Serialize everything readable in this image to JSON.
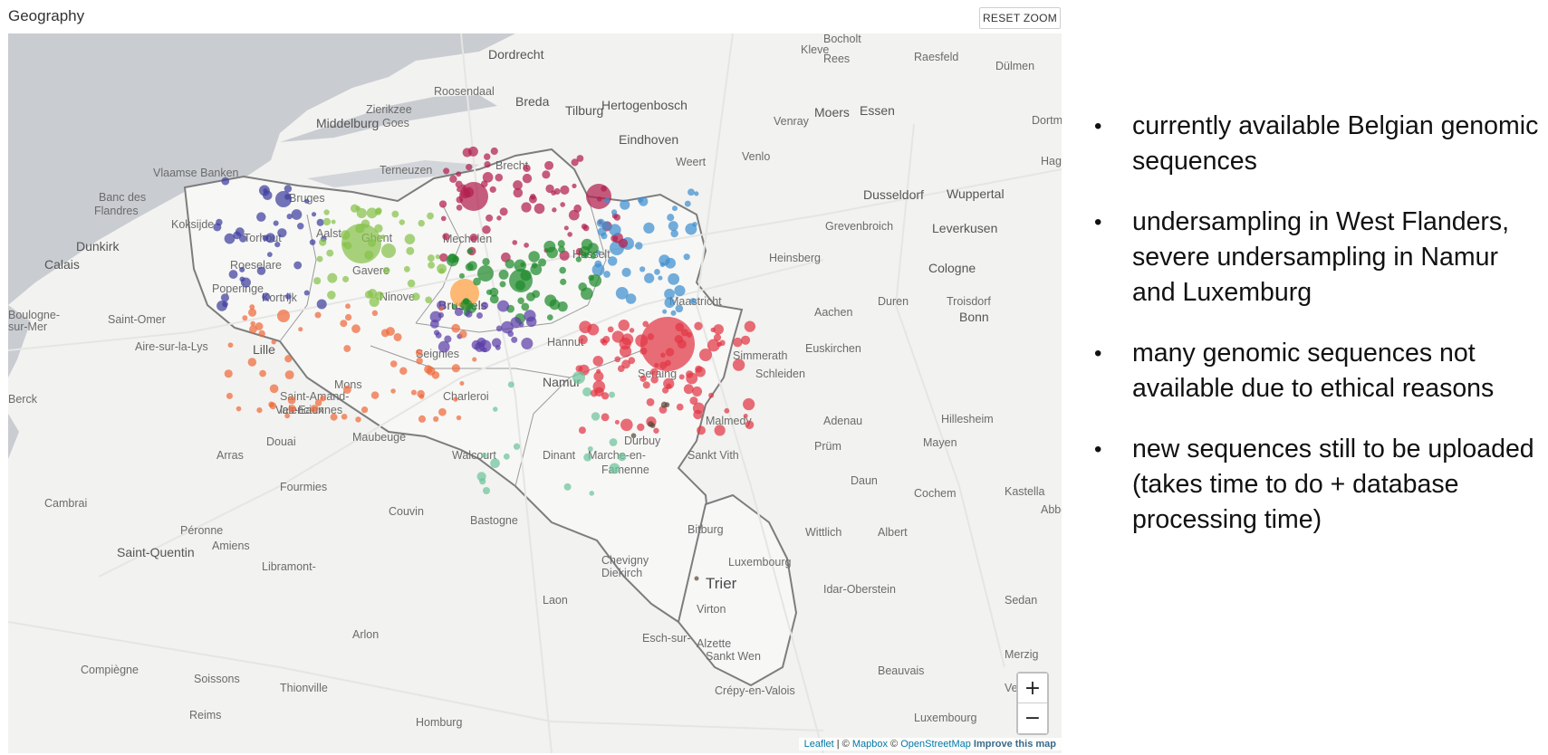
{
  "panel": {
    "title": "Geography",
    "reset_zoom_label": "RESET ZOOM"
  },
  "map": {
    "place_labels": [
      {
        "text": "Dordrecht"
      },
      {
        "text": "Hertogenbosch"
      },
      {
        "text": "Breda"
      },
      {
        "text": "Tilburg"
      },
      {
        "text": "Roosendaal"
      },
      {
        "text": "Middelburg"
      },
      {
        "text": "Goes"
      },
      {
        "text": "Zierikzee"
      },
      {
        "text": "Eindhoven"
      },
      {
        "text": "Venlo"
      },
      {
        "text": "Weert"
      },
      {
        "text": "Moers"
      },
      {
        "text": "Essen"
      },
      {
        "text": "Dortm"
      },
      {
        "text": "Hag"
      },
      {
        "text": "Dusseldorf"
      },
      {
        "text": "Wuppertal"
      },
      {
        "text": "Grevenbroich"
      },
      {
        "text": "Leverkusen"
      },
      {
        "text": "Cologne"
      },
      {
        "text": "Bonn"
      },
      {
        "text": "Troisdorf"
      },
      {
        "text": "Duren"
      },
      {
        "text": "Aachen"
      },
      {
        "text": "Heinsberg"
      },
      {
        "text": "Venray"
      },
      {
        "text": "Kleve"
      },
      {
        "text": "Bocholt"
      },
      {
        "text": "Dülmen"
      },
      {
        "text": "Raesfeld"
      },
      {
        "text": "Rees"
      },
      {
        "text": "Terneuzen"
      },
      {
        "text": "Brecht"
      },
      {
        "text": "Vlaamse Banken"
      },
      {
        "text": "Banc des"
      },
      {
        "text": "Flandres"
      },
      {
        "text": "Bruges"
      },
      {
        "text": "Koksijde"
      },
      {
        "text": "Dunkirk"
      },
      {
        "text": "Calais"
      },
      {
        "text": "Ghent"
      },
      {
        "text": "Aalst"
      },
      {
        "text": "Mechelen"
      },
      {
        "text": "Torhout"
      },
      {
        "text": "Roeselare"
      },
      {
        "text": "Poperinge"
      },
      {
        "text": "Kortrijk"
      },
      {
        "text": "Gavere"
      },
      {
        "text": "Ninove"
      },
      {
        "text": "Brussels"
      },
      {
        "text": "Hasselt"
      },
      {
        "text": "Maastricht"
      },
      {
        "text": "Saint-Omer"
      },
      {
        "text": "Aire-sur-la-Lys"
      },
      {
        "text": "Lille"
      },
      {
        "text": "Boulogne-"
      },
      {
        "text": "sur-Mer"
      },
      {
        "text": "Berck"
      },
      {
        "text": "Hannut"
      },
      {
        "text": "Seraing"
      },
      {
        "text": "Simmerath"
      },
      {
        "text": "Schleiden"
      },
      {
        "text": "Euskirchen"
      },
      {
        "text": "Saint-Amand-"
      },
      {
        "text": "les-Eaux"
      },
      {
        "text": "Mons"
      },
      {
        "text": "Charleroi"
      },
      {
        "text": "Namur"
      },
      {
        "text": "Seignies"
      },
      {
        "text": "Douai"
      },
      {
        "text": "Valenciennes"
      },
      {
        "text": "Malmedy"
      },
      {
        "text": "Arras"
      },
      {
        "text": "Maubeuge"
      },
      {
        "text": "Walcourt"
      },
      {
        "text": "Dinant"
      },
      {
        "text": "Marche-en-"
      },
      {
        "text": "Famenne"
      },
      {
        "text": "Durbuy"
      },
      {
        "text": "Sankt Vith"
      },
      {
        "text": "Adenau"
      },
      {
        "text": "Mayen"
      },
      {
        "text": "Hillesheim"
      },
      {
        "text": "Prüm"
      },
      {
        "text": "Daun"
      },
      {
        "text": "Cochem"
      },
      {
        "text": "Kastella"
      },
      {
        "text": "Abbeville"
      },
      {
        "text": "Cambrai"
      },
      {
        "text": "Fourmies"
      },
      {
        "text": "Couvin"
      },
      {
        "text": "Bastogne"
      },
      {
        "text": "Bitburg"
      },
      {
        "text": "Wittlich"
      },
      {
        "text": "Albert"
      },
      {
        "text": "Péronne"
      },
      {
        "text": "Amiens"
      },
      {
        "text": "Saint-Quentin"
      },
      {
        "text": "Libramont-"
      },
      {
        "text": "Chevigny"
      },
      {
        "text": "Diekirch"
      },
      {
        "text": "Luxembourg"
      },
      {
        "text": "Trier"
      },
      {
        "text": "Idar-Oberstein"
      },
      {
        "text": "Sedan"
      },
      {
        "text": "Laon"
      },
      {
        "text": "Arlon"
      },
      {
        "text": "Virton"
      },
      {
        "text": "Esch-sur-"
      },
      {
        "text": "Alzette"
      },
      {
        "text": "Sankt Wen"
      },
      {
        "text": "Merzig"
      },
      {
        "text": "Beauvais"
      },
      {
        "text": "Compiègne"
      },
      {
        "text": "Soissons"
      },
      {
        "text": "Thionville"
      },
      {
        "text": "Crépy-en-Valois"
      },
      {
        "text": "Reims"
      },
      {
        "text": "Homburg"
      },
      {
        "text": "Verdun"
      },
      {
        "text": "Luxembourg"
      }
    ],
    "cluster_colors": {
      "west_flanders": "#3f3f9e",
      "east_flanders": "#86c24a",
      "antwerp": "#b21e4e",
      "limburg": "#3f8fce",
      "flemish_brabant": "#1f8a2b",
      "brussels": "#ffa040",
      "walloon_brabant": "#5b3fa8",
      "hainaut": "#ee6a3a",
      "namur": "#6cc49a",
      "liege": "#e23644",
      "luxembourg": "#5a4a3a"
    },
    "zoom_in_label": "+",
    "zoom_out_label": "−",
    "logo_text": "mapbox",
    "attribution": {
      "leaflet": "Leaflet",
      "sep1": " | © ",
      "mapbox": "Mapbox",
      "sep2": " © ",
      "osm": "OpenStreetMap",
      "improve": "Improve this map"
    }
  },
  "bullets": [
    "currently available Belgian genomic sequences",
    "undersampling in West Flanders, severe undersampling in Namur and Luxemburg",
    "many genomic sequences not available due to ethical reasons",
    "new sequences still to be uploaded (takes time to do + database processing time)"
  ]
}
